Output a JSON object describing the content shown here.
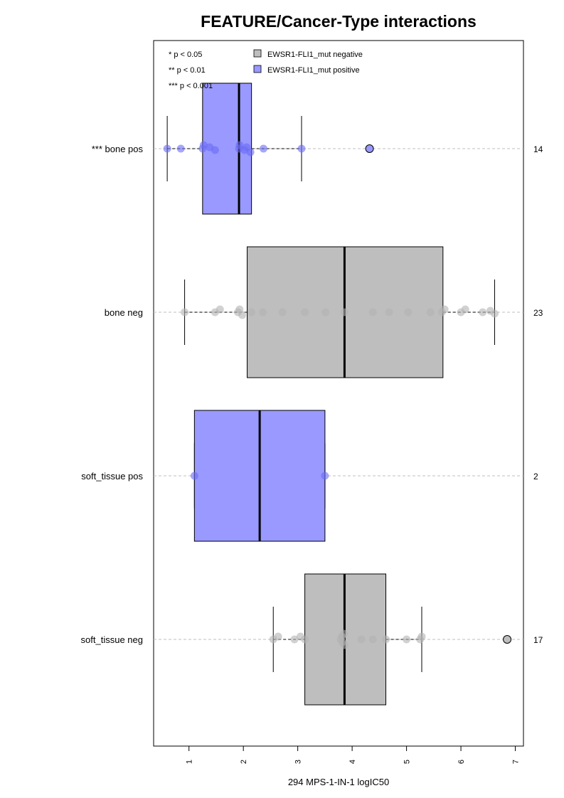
{
  "chart_data": {
    "type": "box",
    "title": "FEATURE/Cancer-Type interactions",
    "xlabel": "294 MPS-1-IN-1 logIC50",
    "ylabel": "",
    "xlim": [
      0.35,
      7.15
    ],
    "xticks": [
      1,
      2,
      3,
      4,
      5,
      6,
      7
    ],
    "grid": "dashed horizontal line at each group",
    "legend": {
      "placement": "top",
      "significance": [
        "* p < 0.05",
        "** p < 0.01",
        "*** p < 0.001"
      ],
      "entries": [
        {
          "label": "EWSR1-FLI1_mut negative",
          "color": "#bebebe"
        },
        {
          "label": "EWSR1-FLI1_mut positive",
          "color": "#9999ff"
        }
      ]
    },
    "colors": {
      "negative_box": "#bebebe",
      "positive_box": "#9999ff",
      "negative_points": "#b3b3b3",
      "positive_points": "#6b6bf5",
      "grid": "#bfbfbf"
    },
    "groups": [
      {
        "label": "*** bone pos",
        "n": "14",
        "status": "positive",
        "whisker_low": 0.6,
        "q1": 1.25,
        "median": 1.92,
        "q3": 2.15,
        "whisker_high": 3.07,
        "outliers": [
          4.32
        ],
        "points": [
          [
            0.6,
            0
          ],
          [
            0.85,
            0
          ],
          [
            1.25,
            0
          ],
          [
            1.27,
            0.5
          ],
          [
            1.38,
            0.2
          ],
          [
            1.48,
            -0.2
          ],
          [
            1.92,
            0
          ],
          [
            1.93,
            0.5
          ],
          [
            2.02,
            -0.2
          ],
          [
            2.06,
            0.2
          ],
          [
            2.13,
            -0.5
          ],
          [
            2.37,
            0
          ],
          [
            3.07,
            0
          ],
          [
            4.32,
            0
          ]
        ]
      },
      {
        "label": "bone neg",
        "n": "23",
        "status": "negative",
        "whisker_low": 0.92,
        "q1": 2.07,
        "median": 3.86,
        "q3": 5.67,
        "whisker_high": 6.62,
        "outliers": [],
        "points": [
          [
            0.92,
            0
          ],
          [
            1.48,
            0
          ],
          [
            1.57,
            0.4
          ],
          [
            1.9,
            0
          ],
          [
            1.93,
            0.4
          ],
          [
            1.98,
            -0.4
          ],
          [
            2.15,
            0
          ],
          [
            2.36,
            0
          ],
          [
            2.72,
            0
          ],
          [
            3.13,
            0
          ],
          [
            3.51,
            0
          ],
          [
            3.86,
            0
          ],
          [
            4.38,
            0
          ],
          [
            4.68,
            0
          ],
          [
            5.03,
            0
          ],
          [
            5.44,
            0
          ],
          [
            5.65,
            0
          ],
          [
            5.7,
            0.4
          ],
          [
            6.0,
            0
          ],
          [
            6.08,
            0.4
          ],
          [
            6.4,
            0
          ],
          [
            6.54,
            0.2
          ],
          [
            6.62,
            -0.2
          ]
        ]
      },
      {
        "label": "soft_tissue pos",
        "n": "2",
        "status": "positive",
        "whisker_low": 1.1,
        "q1": 1.1,
        "median": 2.3,
        "q3": 3.5,
        "whisker_high": 3.5,
        "outliers": [],
        "points": [
          [
            1.1,
            0
          ],
          [
            3.5,
            0
          ]
        ]
      },
      {
        "label": "soft_tissue neg",
        "n": "17",
        "status": "negative",
        "whisker_low": 2.55,
        "q1": 3.13,
        "median": 3.86,
        "q3": 4.62,
        "whisker_high": 5.28,
        "outliers": [
          6.85
        ],
        "points": [
          [
            2.55,
            0
          ],
          [
            2.64,
            0.4
          ],
          [
            2.94,
            0
          ],
          [
            3.05,
            0.4
          ],
          [
            3.13,
            0
          ],
          [
            3.79,
            0
          ],
          [
            3.81,
            0.4
          ],
          [
            3.82,
            -0.4
          ],
          [
            3.85,
            0.8
          ],
          [
            3.86,
            -0.8
          ],
          [
            4.17,
            0
          ],
          [
            4.38,
            0
          ],
          [
            4.62,
            0
          ],
          [
            5.0,
            0
          ],
          [
            5.25,
            0
          ],
          [
            5.28,
            0.4
          ],
          [
            6.85,
            0
          ]
        ]
      }
    ]
  }
}
